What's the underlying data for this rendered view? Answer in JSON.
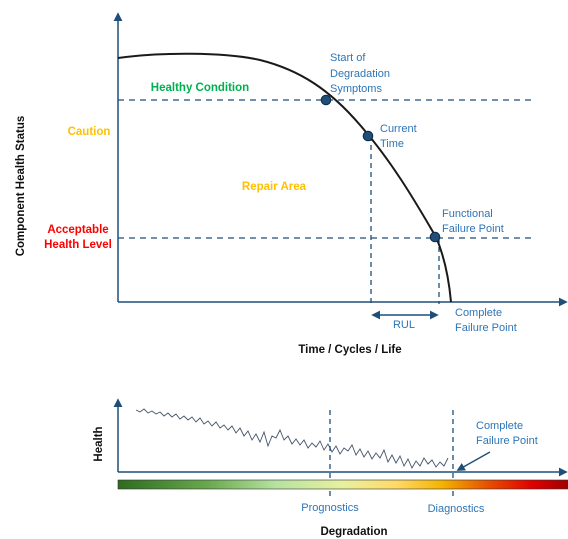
{
  "top_chart": {
    "y_axis_label": "Component Health Status",
    "x_axis_label": "Time / Cycles / Life",
    "levels": {
      "healthy": "Healthy Condition",
      "caution": "Caution",
      "repair": "Repair Area",
      "acceptable_line1": "Acceptable",
      "acceptable_line2": "Health Level"
    },
    "points": {
      "start_line1": "Start of",
      "start_line2": "Degradation",
      "start_line3": "Symptoms",
      "current_line1": "Current",
      "current_line2": "Time",
      "functional_line1": "Functional",
      "functional_line2": "Failure Point",
      "complete_line1": "Complete",
      "complete_line2": "Failure Point"
    },
    "rul_label": "RUL"
  },
  "bottom_chart": {
    "y_axis_label": "Health",
    "x_axis_label": "Degradation",
    "prognostics": "Prognostics",
    "diagnostics": "Diagnostics",
    "complete_line1": "Complete",
    "complete_line2": "Failure Point"
  },
  "colors": {
    "axis": "#1f4e79",
    "curve": "#1a1a1a",
    "dashed": "#1f4e79",
    "point_fill": "#1f4e79",
    "label_blue": "#2e75b6",
    "healthy_green": "#00b050",
    "caution_yellow": "#ffc000",
    "acceptable_red": "#ff0000",
    "signal": "#44546a"
  }
}
